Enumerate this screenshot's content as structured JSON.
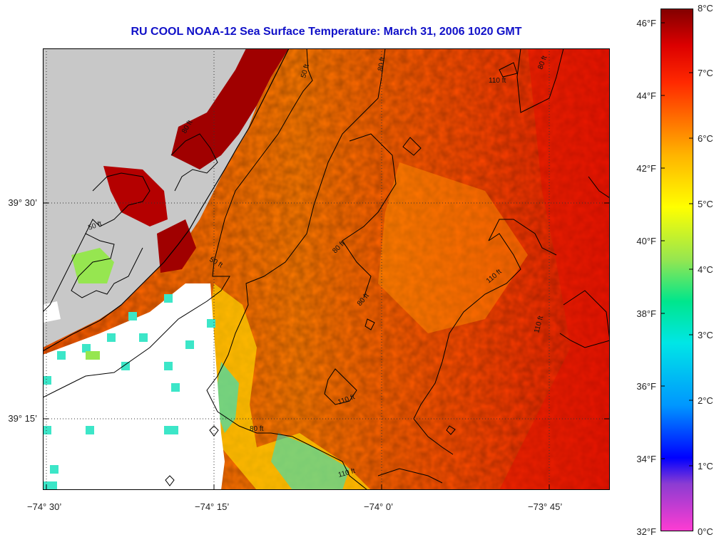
{
  "title": "RU COOL  NOAA-12  Sea Surface Temperature:  March 31, 2006 1020 GMT",
  "map": {
    "lon_labels": [
      "−74° 30’",
      "−74° 15’",
      "−74° 0’",
      "−73° 45’"
    ],
    "lat_labels": [
      "39° 30’",
      "39° 15’"
    ],
    "contour_labels": [
      "50 ft",
      "80 ft",
      "110 ft",
      "80 ft",
      "50 ft",
      "80 ft",
      "80 ft",
      "110 ft",
      "110 ft",
      "110 ft",
      "80 ft",
      "110 ft",
      "50 ft",
      "80 ft"
    ],
    "land_color": "#c8c8c8",
    "no_data_color": "#ffffff",
    "contour_color": "#000000",
    "gridline_style": "dotted"
  },
  "colorbar": {
    "fahrenheit_labels": [
      "46°F",
      "44°F",
      "42°F",
      "40°F",
      "38°F",
      "36°F",
      "34°F",
      "32°F"
    ],
    "celsius_labels": [
      "8°C",
      "7°C",
      "6°C",
      "5°C",
      "4°C",
      "3°C",
      "2°C",
      "1°C",
      "0°C"
    ],
    "colors": [
      "#ff3cd2",
      "#8c3cd2",
      "#0000ff",
      "#0096ff",
      "#00e6e6",
      "#00e68c",
      "#96e650",
      "#ffff00",
      "#ffb400",
      "#ff7800",
      "#ff2800",
      "#dc0000",
      "#820000"
    ]
  }
}
